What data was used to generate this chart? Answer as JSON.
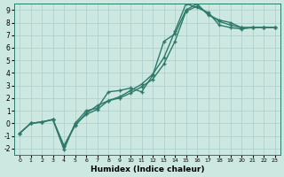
{
  "xlabel": "Humidex (Indice chaleur)",
  "bg_color": "#cce8e0",
  "grid_color": "#aacccc",
  "line_color": "#2d7a6a",
  "xlim": [
    -0.5,
    23.5
  ],
  "ylim": [
    -2.5,
    9.5
  ],
  "xticks": [
    0,
    1,
    2,
    3,
    4,
    5,
    6,
    7,
    8,
    9,
    10,
    11,
    12,
    13,
    14,
    15,
    16,
    17,
    18,
    19,
    20,
    21,
    22,
    23
  ],
  "yticks": [
    -2,
    -1,
    0,
    1,
    2,
    3,
    4,
    5,
    6,
    7,
    8,
    9
  ],
  "line1_x": [
    0,
    1,
    2,
    3,
    4,
    5,
    6,
    7,
    8,
    9,
    10,
    11,
    12,
    13,
    14,
    15,
    16,
    17,
    18,
    19,
    20,
    21,
    22,
    23
  ],
  "line1_y": [
    -0.8,
    0.0,
    0.1,
    0.3,
    -1.8,
    -0.2,
    0.8,
    1.4,
    1.8,
    2.1,
    2.6,
    3.1,
    3.9,
    5.2,
    7.3,
    9.5,
    9.2,
    8.8,
    7.8,
    7.6,
    7.5,
    7.6,
    7.6,
    7.6
  ],
  "line2_x": [
    0,
    1,
    2,
    3,
    4,
    5,
    6,
    7,
    8,
    9,
    10,
    11,
    12,
    13,
    14,
    15,
    16,
    17,
    18,
    19,
    20,
    21,
    22,
    23
  ],
  "line2_y": [
    -0.8,
    0.0,
    0.1,
    0.3,
    -2.1,
    -0.0,
    1.0,
    1.2,
    2.5,
    2.6,
    2.8,
    2.5,
    3.8,
    6.5,
    7.1,
    9.0,
    9.5,
    8.6,
    8.2,
    8.0,
    7.6,
    7.6,
    7.6,
    7.6
  ],
  "line3_x": [
    0,
    1,
    2,
    3,
    4,
    5,
    6,
    7,
    8,
    9,
    10,
    11,
    12,
    13,
    14,
    15,
    16,
    17,
    18,
    19,
    20,
    21,
    22,
    23
  ],
  "line3_y": [
    -0.8,
    0.0,
    0.1,
    0.3,
    -1.8,
    -0.1,
    0.7,
    1.1,
    1.8,
    2.0,
    2.4,
    2.9,
    3.5,
    4.7,
    6.5,
    8.9,
    9.3,
    8.7,
    8.1,
    7.8,
    7.6,
    7.6,
    7.6,
    7.6
  ],
  "ms": 3.5,
  "lw": 1.0,
  "xlabel_fontsize": 6.5,
  "tick_fontsize_x": 4.5,
  "tick_fontsize_y": 5.5
}
